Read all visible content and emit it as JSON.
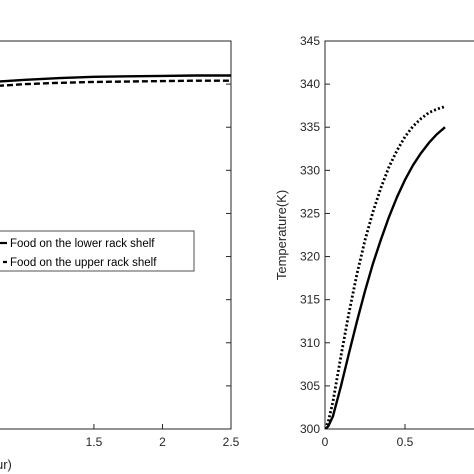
{
  "chart_data": [
    {
      "type": "line",
      "xlabel": "ur)",
      "ylabel": "",
      "xlim": [
        0.8,
        2.5
      ],
      "x_ticks": [
        1.5,
        2,
        2.5
      ],
      "x_tick_labels": [
        "1.5",
        "2",
        "2.5"
      ],
      "ylim": [
        300,
        345
      ],
      "legend_placement": "middle-left",
      "series": [
        {
          "name": "Food on the lower rack shelf",
          "style": "solid",
          "color": "#000000",
          "points": [
            [
              0.8,
              340.3
            ],
            [
              1.0,
              340.5
            ],
            [
              1.25,
              340.7
            ],
            [
              1.5,
              340.85
            ],
            [
              1.75,
              340.9
            ],
            [
              2.0,
              340.95
            ],
            [
              2.25,
              341.0
            ],
            [
              2.5,
              341.0
            ]
          ]
        },
        {
          "name": "Food on the upper rack shelf",
          "style": "dashed",
          "color": "#000000",
          "points": [
            [
              0.8,
              339.8
            ],
            [
              1.0,
              340.0
            ],
            [
              1.25,
              340.15
            ],
            [
              1.5,
              340.25
            ],
            [
              1.75,
              340.3
            ],
            [
              2.0,
              340.35
            ],
            [
              2.25,
              340.4
            ],
            [
              2.5,
              340.4
            ]
          ]
        }
      ]
    },
    {
      "type": "line",
      "xlabel": "",
      "ylabel": "Temperature(K)",
      "xlim": [
        0,
        1.0
      ],
      "x_ticks": [
        0,
        0.5
      ],
      "x_tick_labels": [
        "0",
        "0.5"
      ],
      "ylim": [
        300,
        345
      ],
      "y_ticks": [
        300,
        305,
        310,
        315,
        320,
        325,
        330,
        335,
        340,
        345
      ],
      "y_tick_labels": [
        "300",
        "305",
        "310",
        "315",
        "320",
        "325",
        "330",
        "335",
        "340",
        "345"
      ],
      "series": [
        {
          "style": "solid",
          "color": "#000000",
          "points": [
            [
              0,
              300
            ],
            [
              0.02,
              300.3
            ],
            [
              0.05,
              301.5
            ],
            [
              0.1,
              305
            ],
            [
              0.15,
              308.8
            ],
            [
              0.2,
              312.5
            ],
            [
              0.25,
              316
            ],
            [
              0.3,
              319.2
            ],
            [
              0.35,
              322
            ],
            [
              0.4,
              324.6
            ],
            [
              0.45,
              326.9
            ],
            [
              0.5,
              328.9
            ],
            [
              0.55,
              330.6
            ],
            [
              0.6,
              332
            ],
            [
              0.65,
              333.2
            ],
            [
              0.7,
              334.2
            ],
            [
              0.75,
              335
            ]
          ]
        },
        {
          "style": "dotted",
          "color": "#000000",
          "points": [
            [
              0,
              300
            ],
            [
              0.02,
              300.8
            ],
            [
              0.05,
              303.2
            ],
            [
              0.1,
              308.5
            ],
            [
              0.15,
              313.5
            ],
            [
              0.2,
              318
            ],
            [
              0.25,
              321.9
            ],
            [
              0.3,
              325.2
            ],
            [
              0.35,
              328
            ],
            [
              0.4,
              330.4
            ],
            [
              0.45,
              332.3
            ],
            [
              0.5,
              333.9
            ],
            [
              0.55,
              335.1
            ],
            [
              0.6,
              336
            ],
            [
              0.65,
              336.7
            ],
            [
              0.7,
              337.1
            ],
            [
              0.75,
              337.4
            ]
          ]
        }
      ]
    }
  ]
}
